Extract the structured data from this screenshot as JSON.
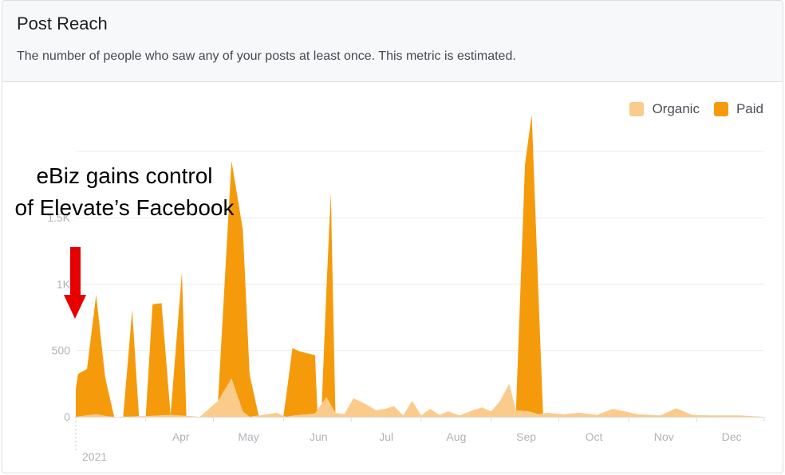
{
  "card": {
    "title": "Post Reach",
    "subtitle": "The number of people who saw any of your posts at least once. This metric is estimated."
  },
  "annotation": {
    "line1": "eBiz gains control",
    "line2": "of Elevate’s Facebook",
    "arrow_color": "#e60000"
  },
  "colors": {
    "organic": "#fbcb8c",
    "paid": "#f59b0b",
    "grid": "#e9ebee",
    "axis_text": "#b0b3b8"
  },
  "chart_data": {
    "type": "area",
    "stacked": true,
    "y_ticks": [
      0,
      500,
      1000,
      1500
    ],
    "y_tick_labels": [
      "0",
      "500",
      "1K",
      "1.5K"
    ],
    "ylim": [
      0,
      2300
    ],
    "x_range": [
      "2021-03-01",
      "2021-12-31"
    ],
    "x_ticks": [
      {
        "date": "2021-04-01",
        "label": "Apr"
      },
      {
        "date": "2021-05-01",
        "label": "May"
      },
      {
        "date": "2021-06-01",
        "label": "Jun"
      },
      {
        "date": "2021-07-01",
        "label": "Jul"
      },
      {
        "date": "2021-08-01",
        "label": "Aug"
      },
      {
        "date": "2021-09-01",
        "label": "Sep"
      },
      {
        "date": "2021-10-01",
        "label": "Oct"
      },
      {
        "date": "2021-11-01",
        "label": "Nov"
      },
      {
        "date": "2021-12-01",
        "label": "Dec"
      }
    ],
    "year_label": "2021",
    "legend_position": "top-right",
    "series": [
      {
        "name": "Organic",
        "points": [
          [
            "2021-03-01",
            0
          ],
          [
            "2021-03-10",
            20
          ],
          [
            "2021-03-15",
            5
          ],
          [
            "2021-03-18",
            0
          ],
          [
            "2021-04-01",
            5
          ],
          [
            "2021-04-12",
            15
          ],
          [
            "2021-04-25",
            0
          ],
          [
            "2021-05-03",
            120
          ],
          [
            "2021-05-09",
            290
          ],
          [
            "2021-05-14",
            40
          ],
          [
            "2021-05-17",
            0
          ],
          [
            "2021-05-29",
            30
          ],
          [
            "2021-06-02",
            0
          ],
          [
            "2021-06-06",
            10
          ],
          [
            "2021-06-15",
            25
          ],
          [
            "2021-06-20",
            150
          ],
          [
            "2021-06-24",
            30
          ],
          [
            "2021-06-28",
            20
          ],
          [
            "2021-07-02",
            140
          ],
          [
            "2021-07-07",
            100
          ],
          [
            "2021-07-12",
            50
          ],
          [
            "2021-07-16",
            60
          ],
          [
            "2021-07-20",
            80
          ],
          [
            "2021-07-24",
            10
          ],
          [
            "2021-07-28",
            120
          ],
          [
            "2021-08-01",
            10
          ],
          [
            "2021-08-05",
            60
          ],
          [
            "2021-08-09",
            15
          ],
          [
            "2021-08-13",
            40
          ],
          [
            "2021-08-18",
            10
          ],
          [
            "2021-08-24",
            50
          ],
          [
            "2021-08-28",
            70
          ],
          [
            "2021-09-01",
            40
          ],
          [
            "2021-09-05",
            120
          ],
          [
            "2021-09-09",
            250
          ],
          [
            "2021-09-12",
            50
          ],
          [
            "2021-09-18",
            40
          ],
          [
            "2021-09-22",
            20
          ],
          [
            "2021-09-26",
            30
          ],
          [
            "2021-10-03",
            20
          ],
          [
            "2021-10-10",
            30
          ],
          [
            "2021-10-18",
            15
          ],
          [
            "2021-10-25",
            60
          ],
          [
            "2021-11-05",
            20
          ],
          [
            "2021-11-15",
            10
          ],
          [
            "2021-11-22",
            65
          ],
          [
            "2021-11-29",
            15
          ],
          [
            "2021-12-08",
            10
          ],
          [
            "2021-12-20",
            10
          ],
          [
            "2021-12-31",
            0
          ]
        ]
      },
      {
        "name": "Paid",
        "points": [
          [
            "2021-03-01",
            210
          ],
          [
            "2021-03-02",
            320
          ],
          [
            "2021-03-06",
            350
          ],
          [
            "2021-03-10",
            900
          ],
          [
            "2021-03-14",
            290
          ],
          [
            "2021-03-18",
            0
          ],
          [
            "2021-03-22",
            0
          ],
          [
            "2021-03-26",
            800
          ],
          [
            "2021-03-29",
            0
          ],
          [
            "2021-04-01",
            0
          ],
          [
            "2021-04-04",
            840
          ],
          [
            "2021-04-08",
            845
          ],
          [
            "2021-04-12",
            0
          ],
          [
            "2021-04-17",
            1080
          ],
          [
            "2021-04-19",
            0
          ],
          [
            "2021-05-03",
            0
          ],
          [
            "2021-05-09",
            1640
          ],
          [
            "2021-05-14",
            1370
          ],
          [
            "2021-05-17",
            320
          ],
          [
            "2021-05-21",
            0
          ],
          [
            "2021-06-01",
            0
          ],
          [
            "2021-06-05",
            510
          ],
          [
            "2021-06-08",
            480
          ],
          [
            "2021-06-15",
            440
          ],
          [
            "2021-06-16",
            0
          ],
          [
            "2021-06-18",
            0
          ],
          [
            "2021-06-22",
            1600
          ],
          [
            "2021-06-24",
            0
          ],
          [
            "2021-09-12",
            0
          ],
          [
            "2021-09-16",
            1860
          ],
          [
            "2021-09-19",
            2240
          ],
          [
            "2021-09-24",
            0
          ]
        ]
      }
    ]
  }
}
